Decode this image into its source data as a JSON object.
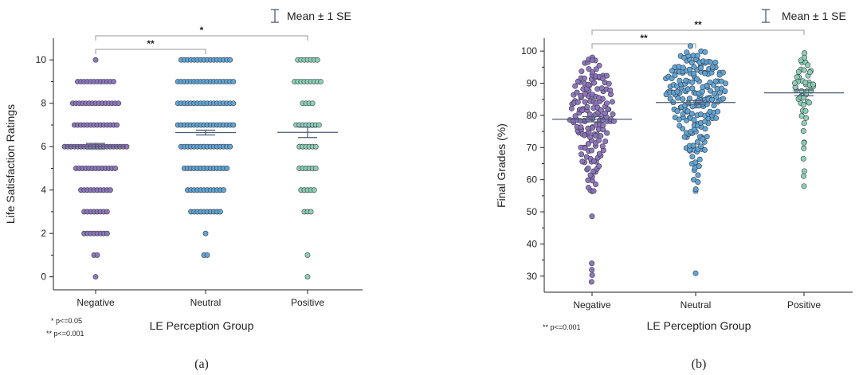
{
  "colors": {
    "Negative": "#8a70b8",
    "Neutral": "#5aa2d2",
    "Positive": "#88cfb0",
    "edge": "#3a3a4a",
    "mean": "#4a5a75"
  },
  "legend_label": "Mean ± 1 SE",
  "chart_data": [
    {
      "type": "scatter",
      "categories": [
        "Negative",
        "Neutral",
        "Positive"
      ],
      "xlabel": "LE Perception Group",
      "ylabel": "Life Satisfaction Ratings",
      "ylim": [
        -0.6,
        11
      ],
      "yticks": [
        0,
        2,
        4,
        6,
        8,
        10
      ],
      "legend": "top-right",
      "caption": "(a)",
      "notes": [
        "* p<=0.05",
        "** p<=0.001"
      ],
      "significance": [
        {
          "from": "Negative",
          "to": "Neutral",
          "label": "**"
        },
        {
          "from": "Negative",
          "to": "Positive",
          "label": "*"
        }
      ],
      "series": [
        {
          "group": "Negative",
          "mean": 6.02,
          "se": 0.13,
          "counts": {
            "0": 1,
            "1": 2,
            "2": 8,
            "3": 8,
            "4": 10,
            "5": 13,
            "6": 20,
            "7": 14,
            "8": 15,
            "9": 12,
            "10": 1
          }
        },
        {
          "group": "Neutral",
          "mean": 6.65,
          "se": 0.11,
          "counts": {
            "1": 2,
            "2": 1,
            "3": 10,
            "4": 12,
            "5": 14,
            "6": 16,
            "7": 18,
            "8": 18,
            "9": 18,
            "10": 16
          }
        },
        {
          "group": "Positive",
          "mean": 6.66,
          "se": 0.24,
          "counts": {
            "0": 1,
            "1": 1,
            "3": 3,
            "4": 5,
            "5": 6,
            "6": 6,
            "7": 8,
            "8": 4,
            "9": 9,
            "10": 7
          }
        }
      ]
    },
    {
      "type": "scatter",
      "categories": [
        "Negative",
        "Neutral",
        "Positive"
      ],
      "xlabel": "LE Perception Group",
      "ylabel": "Final Grades (%)",
      "ylim": [
        25,
        104
      ],
      "yticks": [
        30,
        40,
        50,
        60,
        70,
        80,
        90,
        100
      ],
      "legend": "top-right",
      "caption": "(b)",
      "notes": [
        "** p<=0.001"
      ],
      "significance": [
        {
          "from": "Negative",
          "to": "Neutral",
          "label": "**"
        },
        {
          "from": "Negative",
          "to": "Positive",
          "label": "**"
        }
      ],
      "series": [
        {
          "group": "Negative",
          "mean": 78.8,
          "se": 0.8,
          "bins": [
            [
              27.5,
              1
            ],
            [
              30,
              1
            ],
            [
              32,
              1
            ],
            [
              35,
              1
            ],
            [
              48.5,
              1
            ],
            [
              55,
              1
            ],
            [
              57,
              2
            ],
            [
              59,
              3
            ],
            [
              61,
              3
            ],
            [
              63,
              4
            ],
            [
              65,
              5
            ],
            [
              67,
              6
            ],
            [
              69,
              7
            ],
            [
              71,
              7
            ],
            [
              73,
              8
            ],
            [
              75,
              9
            ],
            [
              77,
              11
            ],
            [
              79,
              13
            ],
            [
              81,
              12
            ],
            [
              83,
              12
            ],
            [
              85,
              11
            ],
            [
              87,
              11
            ],
            [
              89,
              10
            ],
            [
              91,
              9
            ],
            [
              93,
              7
            ],
            [
              95,
              5
            ],
            [
              97,
              3
            ],
            [
              98,
              1
            ]
          ]
        },
        {
          "group": "Neutral",
          "mean": 84.0,
          "se": 0.6,
          "bins": [
            [
              30,
              1
            ],
            [
              55,
              1
            ],
            [
              58,
              1
            ],
            [
              60,
              2
            ],
            [
              62,
              2
            ],
            [
              64,
              3
            ],
            [
              66,
              3
            ],
            [
              68,
              4
            ],
            [
              70,
              6
            ],
            [
              72,
              6
            ],
            [
              74,
              7
            ],
            [
              76,
              8
            ],
            [
              78,
              10
            ],
            [
              80,
              12
            ],
            [
              82,
              13
            ],
            [
              84,
              15
            ],
            [
              86,
              16
            ],
            [
              88,
              17
            ],
            [
              90,
              17
            ],
            [
              92,
              16
            ],
            [
              94,
              14
            ],
            [
              96,
              12
            ],
            [
              98,
              9
            ],
            [
              100,
              6
            ]
          ]
        },
        {
          "group": "Positive",
          "mean": 87.0,
          "se": 0.9,
          "bins": [
            [
              58,
              1
            ],
            [
              60,
              1
            ],
            [
              63,
              1
            ],
            [
              68,
              1
            ],
            [
              70,
              1
            ],
            [
              72,
              1
            ],
            [
              73,
              1
            ],
            [
              75,
              1
            ],
            [
              77,
              1
            ],
            [
              79,
              2
            ],
            [
              81,
              2
            ],
            [
              83,
              3
            ],
            [
              85,
              4
            ],
            [
              87,
              5
            ],
            [
              89,
              6
            ],
            [
              91,
              6
            ],
            [
              93,
              5
            ],
            [
              95,
              4
            ],
            [
              97,
              3
            ],
            [
              100,
              1
            ]
          ]
        }
      ]
    }
  ]
}
